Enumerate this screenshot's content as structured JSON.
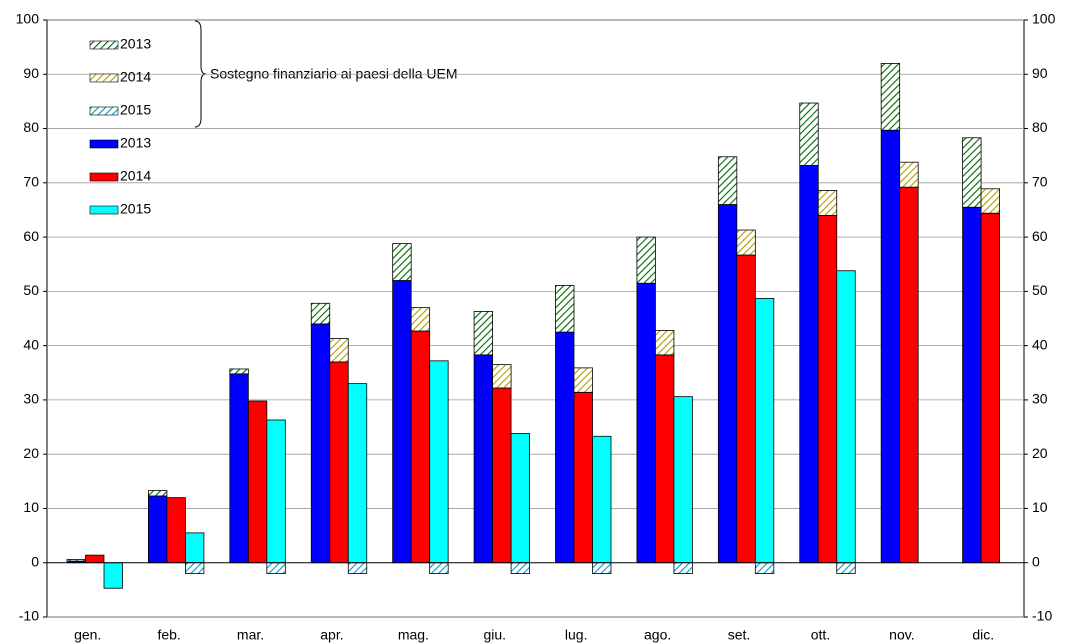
{
  "chart_data": {
    "type": "bar",
    "annotation": "Sostegno finanziario ai paesi della UEM",
    "categories": [
      "gen.",
      "feb.",
      "mar.",
      "apr.",
      "mag.",
      "giu.",
      "lug.",
      "ago.",
      "set.",
      "ott.",
      "nov.",
      "dic."
    ],
    "series": [
      {
        "name": "2013",
        "color": "#006600",
        "pattern": "hatch",
        "values": [
          0.3,
          1,
          0.9,
          3.8,
          6.8,
          8,
          8.6,
          8.5,
          8.8,
          11.5,
          12.3,
          12.8
        ]
      },
      {
        "name": "2014",
        "color": "#b39b00",
        "pattern": "hatch",
        "values": [
          null,
          null,
          null,
          4.3,
          4.3,
          4.3,
          4.5,
          4.5,
          4.6,
          4.6,
          4.6,
          4.5
        ]
      },
      {
        "name": "2015",
        "color": "#0099cc",
        "pattern": "hatch",
        "values": [
          null,
          -2,
          -2,
          -2,
          -2,
          -2,
          -2,
          -2,
          -2,
          -2,
          null,
          null
        ]
      },
      {
        "name": "2013",
        "color": "#0000ff",
        "values": [
          0.3,
          12.3,
          34.8,
          44,
          52,
          38.3,
          42.5,
          51.5,
          66,
          73.2,
          79.7,
          65.5
        ]
      },
      {
        "name": "2014",
        "color": "#ff0000",
        "values": [
          1.4,
          12,
          29.8,
          37,
          42.7,
          32.2,
          31.4,
          38.3,
          56.7,
          64,
          69.2,
          64.4
        ]
      },
      {
        "name": "2015",
        "color": "#00ffff",
        "values": [
          -4.7,
          5.5,
          26.3,
          33,
          37.2,
          23.8,
          23.3,
          30.6,
          48.7,
          53.8,
          null,
          null
        ]
      }
    ],
    "ylim": [
      -10,
      100
    ],
    "yticks": [
      -10,
      0,
      10,
      20,
      30,
      40,
      50,
      60,
      70,
      80,
      90,
      100
    ],
    "y2lim": [
      -10,
      100
    ],
    "y2ticks": [
      -10,
      0,
      10,
      20,
      30,
      40,
      50,
      60,
      70,
      80,
      90,
      100
    ],
    "grid": true
  }
}
